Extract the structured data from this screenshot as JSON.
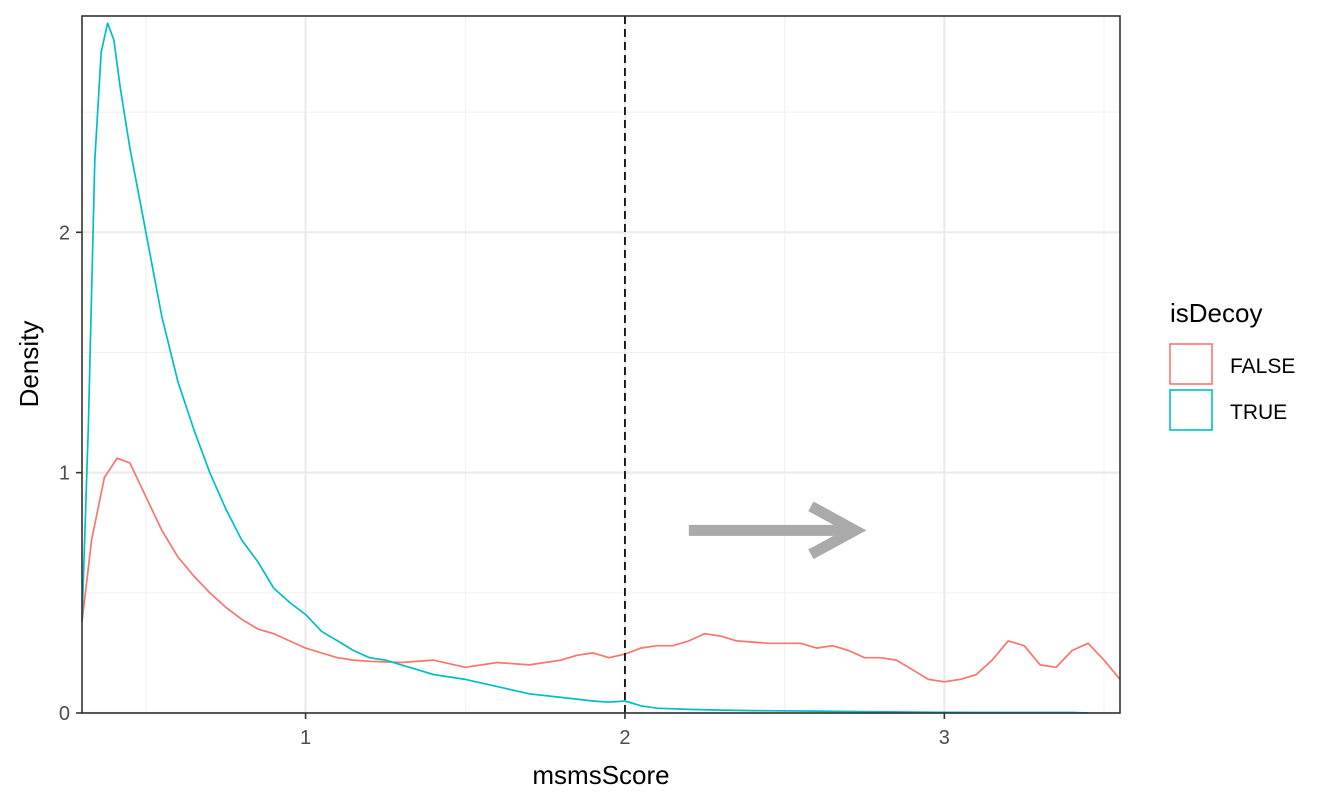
{
  "chart_data": {
    "type": "line",
    "subtype": "density",
    "title": "",
    "xlabel": "msmsScore",
    "ylabel": "Density",
    "xlim": [
      0.3,
      3.55
    ],
    "ylim": [
      0,
      2.9
    ],
    "x_ticks": [
      1,
      2,
      3
    ],
    "x_tick_labels": [
      "1",
      "2",
      "3"
    ],
    "y_ticks": [
      0,
      1,
      2
    ],
    "y_tick_labels": [
      "0",
      "1",
      "2"
    ],
    "grid": true,
    "legend": {
      "title": "isDecoy",
      "position": "right",
      "entries": [
        "FALSE",
        "TRUE"
      ]
    },
    "threshold_line": {
      "x": 2,
      "style": "dashed",
      "color": "#000000"
    },
    "annotation": {
      "type": "arrow",
      "direction": "right",
      "color": "#aaaaaa",
      "from": [
        2.2,
        0.76
      ],
      "to": [
        2.72,
        0.76
      ]
    },
    "series": [
      {
        "name": "FALSE",
        "color": "#F8766D",
        "points": [
          [
            0.3,
            0.38
          ],
          [
            0.33,
            0.72
          ],
          [
            0.37,
            0.98
          ],
          [
            0.41,
            1.06
          ],
          [
            0.45,
            1.04
          ],
          [
            0.5,
            0.9
          ],
          [
            0.55,
            0.76
          ],
          [
            0.6,
            0.65
          ],
          [
            0.65,
            0.57
          ],
          [
            0.7,
            0.5
          ],
          [
            0.75,
            0.44
          ],
          [
            0.8,
            0.39
          ],
          [
            0.85,
            0.35
          ],
          [
            0.9,
            0.33
          ],
          [
            0.95,
            0.3
          ],
          [
            1.0,
            0.27
          ],
          [
            1.05,
            0.25
          ],
          [
            1.1,
            0.23
          ],
          [
            1.15,
            0.22
          ],
          [
            1.2,
            0.215
          ],
          [
            1.3,
            0.21
          ],
          [
            1.4,
            0.22
          ],
          [
            1.5,
            0.19
          ],
          [
            1.6,
            0.21
          ],
          [
            1.7,
            0.2
          ],
          [
            1.8,
            0.22
          ],
          [
            1.85,
            0.24
          ],
          [
            1.9,
            0.25
          ],
          [
            1.95,
            0.23
          ],
          [
            2.0,
            0.245
          ],
          [
            2.05,
            0.27
          ],
          [
            2.1,
            0.28
          ],
          [
            2.15,
            0.28
          ],
          [
            2.2,
            0.3
          ],
          [
            2.25,
            0.33
          ],
          [
            2.3,
            0.32
          ],
          [
            2.35,
            0.3
          ],
          [
            2.45,
            0.29
          ],
          [
            2.55,
            0.29
          ],
          [
            2.6,
            0.27
          ],
          [
            2.65,
            0.28
          ],
          [
            2.7,
            0.26
          ],
          [
            2.75,
            0.23
          ],
          [
            2.8,
            0.23
          ],
          [
            2.85,
            0.22
          ],
          [
            2.9,
            0.18
          ],
          [
            2.95,
            0.14
          ],
          [
            3.0,
            0.13
          ],
          [
            3.05,
            0.14
          ],
          [
            3.1,
            0.16
          ],
          [
            3.15,
            0.22
          ],
          [
            3.2,
            0.3
          ],
          [
            3.25,
            0.28
          ],
          [
            3.3,
            0.2
          ],
          [
            3.35,
            0.19
          ],
          [
            3.4,
            0.26
          ],
          [
            3.45,
            0.29
          ],
          [
            3.5,
            0.22
          ],
          [
            3.55,
            0.14
          ]
        ]
      },
      {
        "name": "TRUE",
        "color": "#00BFC4",
        "points": [
          [
            0.3,
            0.38
          ],
          [
            0.32,
            1.2
          ],
          [
            0.34,
            2.3
          ],
          [
            0.36,
            2.75
          ],
          [
            0.38,
            2.87
          ],
          [
            0.4,
            2.8
          ],
          [
            0.42,
            2.6
          ],
          [
            0.45,
            2.35
          ],
          [
            0.5,
            2.0
          ],
          [
            0.55,
            1.65
          ],
          [
            0.6,
            1.38
          ],
          [
            0.65,
            1.18
          ],
          [
            0.7,
            1.0
          ],
          [
            0.75,
            0.85
          ],
          [
            0.8,
            0.72
          ],
          [
            0.85,
            0.63
          ],
          [
            0.9,
            0.52
          ],
          [
            0.95,
            0.46
          ],
          [
            1.0,
            0.41
          ],
          [
            1.05,
            0.34
          ],
          [
            1.1,
            0.3
          ],
          [
            1.15,
            0.26
          ],
          [
            1.2,
            0.23
          ],
          [
            1.25,
            0.22
          ],
          [
            1.3,
            0.2
          ],
          [
            1.35,
            0.18
          ],
          [
            1.4,
            0.16
          ],
          [
            1.5,
            0.14
          ],
          [
            1.6,
            0.11
          ],
          [
            1.7,
            0.08
          ],
          [
            1.8,
            0.065
          ],
          [
            1.9,
            0.05
          ],
          [
            1.95,
            0.045
          ],
          [
            2.0,
            0.05
          ],
          [
            2.05,
            0.03
          ],
          [
            2.1,
            0.02
          ],
          [
            2.2,
            0.015
          ],
          [
            2.3,
            0.012
          ],
          [
            2.4,
            0.01
          ],
          [
            2.6,
            0.008
          ],
          [
            2.8,
            0.005
          ],
          [
            3.0,
            0.003
          ],
          [
            3.2,
            0.002
          ],
          [
            3.4,
            0.002
          ],
          [
            3.45,
            0.0
          ]
        ]
      }
    ]
  }
}
